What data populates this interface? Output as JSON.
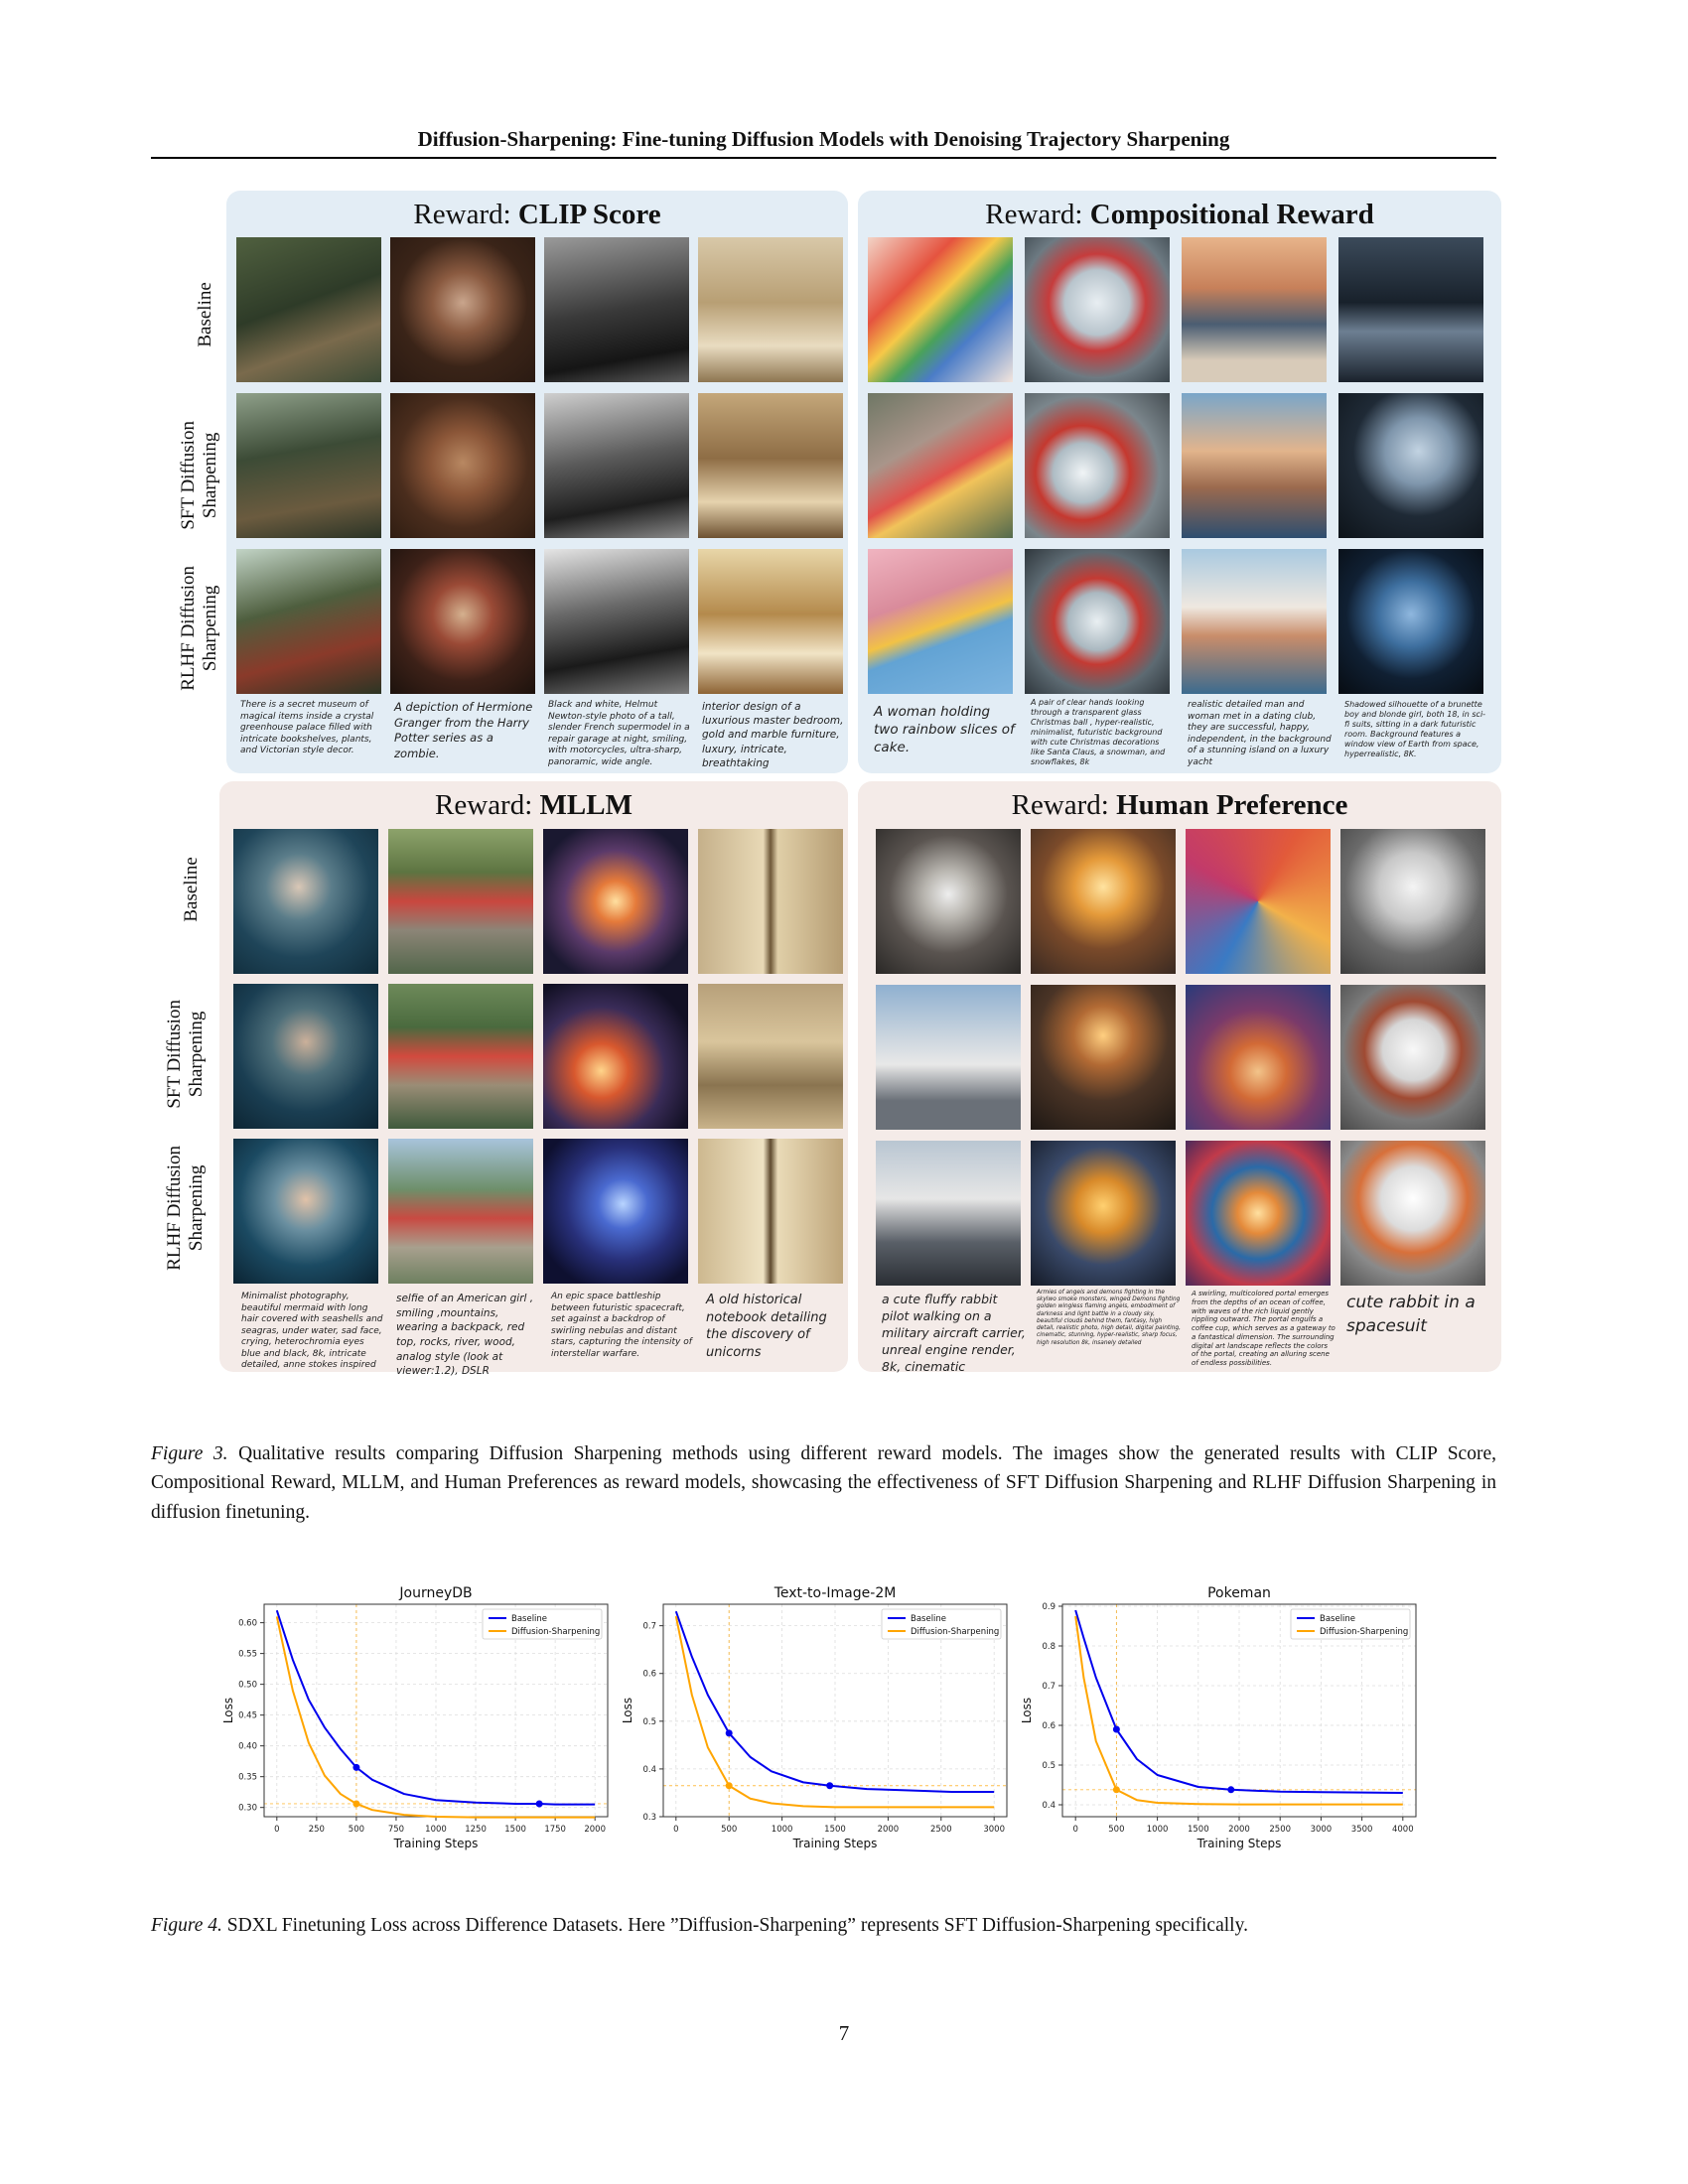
{
  "header": {
    "title": "Diffusion-Sharpening: Fine-tuning Diffusion Models with Denoising Trajectory Sharpening"
  },
  "row_labels": {
    "baseline": "Baseline",
    "sft_line1": "SFT Diffusion",
    "sft_line2": "Sharpening",
    "rlhf_line1": "RLHF Diffusion",
    "rlhf_line2": "Sharpening"
  },
  "panels": [
    {
      "reward_prefix": "Reward: ",
      "reward_name": "CLIP Score",
      "prompts": [
        "There is a secret museum of magical items inside a crystal greenhouse palace filled with intricate bookshelves, plants, and Victorian style decor.",
        "A depiction of Hermione Granger from the Harry Potter series as a zombie.",
        "Black and white, Helmut Newton-style photo of a tall, slender French supermodel in a repair garage at night, smiling, with motorcycles, ultra-sharp, panoramic, wide angle.",
        "interior design of a luxurious master bedroom, gold and marble furniture, luxury, intricate, breathtaking"
      ]
    },
    {
      "reward_prefix": "Reward: ",
      "reward_name": "Compositional Reward",
      "prompts": [
        "A woman holding two rainbow slices of cake.",
        "A pair of clear hands looking through a transparent glass Christmas ball , hyper-realistic, minimalist, futuristic background with cute Christmas decorations like Santa Claus, a snowman, and snowflakes, 8k",
        "realistic detailed man and woman met in a dating club, they are successful, happy, independent, in the background of a stunning island on a luxury yacht",
        "Shadowed silhouette of a brunette boy and blonde girl, both 18, in sci-fi suits, sitting in a dark futuristic room. Background features a window view of Earth from space, hyperrealistic, 8K."
      ]
    },
    {
      "reward_prefix": "Reward: ",
      "reward_name": "MLLM",
      "prompts": [
        "Minimalist photography, beautiful  mermaid with long hair covered with seashells and seagras, under water, sad face, crying, heterochromia eyes blue and black, 8k, intricate detailed, anne stokes inspired",
        "selfie of an American girl , smiling  ,mountains, wearing a backpack, red top,  rocks, river, wood, analog style (look at viewer:1.2), DSLR",
        "An epic space battleship between futuristic spacecraft, set against a backdrop of swirling nebulas and distant stars, capturing the intensity of interstellar warfare.",
        "A old historical notebook detailing the discovery of unicorns"
      ]
    },
    {
      "reward_prefix": "Reward: ",
      "reward_name": "Human Preference",
      "prompts": [
        "a cute fluffy rabbit pilot walking on a military aircraft carrier, unreal engine render, 8k, cinematic",
        "Armies of angels and demons fighting in the skyIwo smoke monsters, winged Demons fighting golden wingless flaming angels, embodiment of darkness and light battle in a cloudy sky, beautiful clouds behind them, fantasy, high detail, realistic photo, high detail, digital painting, cinematic, stunning, hyper-realistic, sharp focus, high resolution 8k, insanely detailed",
        "A swirling, multicolored portal emerges from the depths of an ocean of coffee, with waves of the rich liquid gently rippling outward. The portal engulfs a coffee cup, which serves as a gateway to a fantastical dimension. The surrounding digital art landscape reflects the colors of the portal, creating an alluring scene of endless possibilities.",
        "cute rabbit in a spacesuit"
      ]
    }
  ],
  "figure3_caption": {
    "label": "Figure 3.",
    "text": " Qualitative results comparing Diffusion Sharpening methods using different reward models. The images show the generated results with CLIP Score, Compositional Reward, MLLM, and Human Preferences as reward models, showcasing the effectiveness of SFT Diffusion Sharpening and RLHF Diffusion Sharpening in diffusion finetuning."
  },
  "chart_data": [
    {
      "type": "line",
      "title": "JourneyDB",
      "xlabel": "Training Steps",
      "ylabel": "Loss",
      "xlim": [
        -80,
        2080
      ],
      "ylim": [
        0.285,
        0.63
      ],
      "xticks": [
        0,
        250,
        500,
        750,
        1000,
        1250,
        1500,
        1750,
        2000
      ],
      "yticks": [
        0.3,
        0.35,
        0.4,
        0.45,
        0.5,
        0.55,
        0.6
      ],
      "ytick_labels": [
        "0.30",
        "0.35",
        "0.40",
        "0.45",
        "0.50",
        "0.55",
        "0.60"
      ],
      "grid": true,
      "legend": "top-right",
      "series": [
        {
          "name": "Baseline",
          "color": "#0000ee",
          "x": [
            0,
            100,
            200,
            300,
            400,
            500,
            600,
            800,
            1000,
            1250,
            1500,
            1650,
            1750,
            2000
          ],
          "y": [
            0.62,
            0.54,
            0.475,
            0.43,
            0.395,
            0.365,
            0.345,
            0.322,
            0.312,
            0.308,
            0.306,
            0.306,
            0.305,
            0.305
          ]
        },
        {
          "name": "Diffusion-Sharpening",
          "color": "#ffa500",
          "x": [
            0,
            100,
            200,
            300,
            400,
            500,
            600,
            800,
            1000,
            1250,
            1500,
            2000
          ],
          "y": [
            0.61,
            0.49,
            0.405,
            0.352,
            0.322,
            0.306,
            0.296,
            0.288,
            0.285,
            0.284,
            0.284,
            0.284
          ]
        }
      ],
      "markers": [
        {
          "series": 0,
          "x": 500,
          "y": 0.365
        },
        {
          "series": 0,
          "x": 1650,
          "y": 0.306
        },
        {
          "series": 1,
          "x": 500,
          "y": 0.306
        }
      ],
      "guides": {
        "vline": 500,
        "hline": 0.306
      }
    },
    {
      "type": "line",
      "title": "Text-to-Image-2M",
      "xlabel": "Training Steps",
      "ylabel": "Loss",
      "xlim": [
        -120,
        3120
      ],
      "ylim": [
        0.3,
        0.745
      ],
      "xticks": [
        0,
        500,
        1000,
        1500,
        2000,
        2500,
        3000
      ],
      "yticks": [
        0.3,
        0.4,
        0.5,
        0.6,
        0.7
      ],
      "ytick_labels": [
        "0.3",
        "0.4",
        "0.5",
        "0.6",
        "0.7"
      ],
      "grid": true,
      "legend": "top-right",
      "series": [
        {
          "name": "Baseline",
          "color": "#0000ee",
          "x": [
            0,
            150,
            300,
            500,
            700,
            900,
            1200,
            1450,
            1800,
            2200,
            2600,
            3000
          ],
          "y": [
            0.73,
            0.635,
            0.555,
            0.475,
            0.425,
            0.395,
            0.372,
            0.365,
            0.358,
            0.355,
            0.352,
            0.352
          ]
        },
        {
          "name": "Diffusion-Sharpening",
          "color": "#ffa500",
          "x": [
            0,
            150,
            300,
            500,
            700,
            900,
            1200,
            1500,
            2000,
            2500,
            3000
          ],
          "y": [
            0.72,
            0.555,
            0.445,
            0.365,
            0.338,
            0.328,
            0.322,
            0.32,
            0.32,
            0.32,
            0.32
          ]
        }
      ],
      "markers": [
        {
          "series": 0,
          "x": 500,
          "y": 0.475
        },
        {
          "series": 0,
          "x": 1450,
          "y": 0.365
        },
        {
          "series": 1,
          "x": 500,
          "y": 0.365
        }
      ],
      "guides": {
        "vline": 500,
        "hline": 0.365
      }
    },
    {
      "type": "line",
      "title": "Pokeman",
      "xlabel": "Training Steps",
      "ylabel": "Loss",
      "xlim": [
        -160,
        4160
      ],
      "ylim": [
        0.37,
        0.905
      ],
      "xticks": [
        0,
        500,
        1000,
        1500,
        2000,
        2500,
        3000,
        3500,
        4000
      ],
      "yticks": [
        0.4,
        0.5,
        0.6,
        0.7,
        0.8,
        0.9
      ],
      "ytick_labels": [
        "0.4",
        "0.5",
        "0.6",
        "0.7",
        "0.8",
        "0.9"
      ],
      "grid": true,
      "legend": "top-right",
      "series": [
        {
          "name": "Baseline",
          "color": "#0000ee",
          "x": [
            0,
            100,
            250,
            500,
            750,
            1000,
            1500,
            1900,
            2500,
            3000,
            3500,
            4000
          ],
          "y": [
            0.89,
            0.82,
            0.72,
            0.59,
            0.515,
            0.475,
            0.445,
            0.438,
            0.433,
            0.432,
            0.431,
            0.43
          ]
        },
        {
          "name": "Diffusion-Sharpening",
          "color": "#ffa500",
          "x": [
            0,
            100,
            250,
            500,
            750,
            1000,
            1500,
            2000,
            3000,
            4000
          ],
          "y": [
            0.875,
            0.72,
            0.56,
            0.438,
            0.412,
            0.405,
            0.402,
            0.401,
            0.401,
            0.401
          ]
        }
      ],
      "markers": [
        {
          "series": 0,
          "x": 500,
          "y": 0.59
        },
        {
          "series": 0,
          "x": 1900,
          "y": 0.438
        },
        {
          "series": 1,
          "x": 500,
          "y": 0.438
        }
      ],
      "guides": {
        "vline": 500,
        "hline": 0.438
      }
    }
  ],
  "figure4_caption": {
    "label": "Figure 4.",
    "text": " SDXL Finetuning Loss across Difference Datasets.  Here ”Diffusion-Sharpening” represents SFT Diffusion-Sharpening specifically."
  },
  "page_number": "7"
}
